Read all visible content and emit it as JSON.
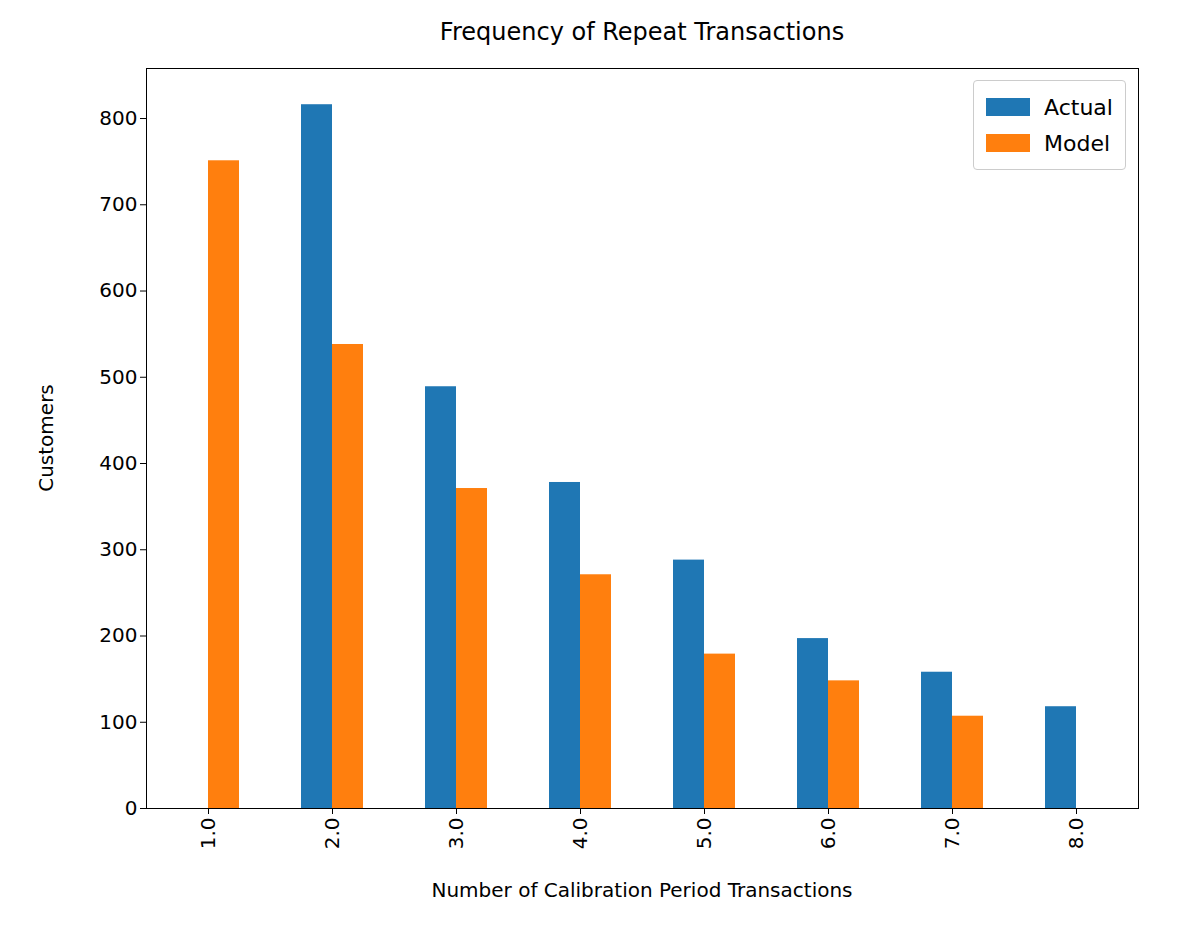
{
  "chart_data": {
    "type": "bar",
    "title": "Frequency of Repeat Transactions",
    "x_label": "Number of Calibration Period Transactions",
    "y_label": "Customers",
    "categories": [
      "1.0",
      "2.0",
      "3.0",
      "4.0",
      "5.0",
      "6.0",
      "7.0",
      "8.0"
    ],
    "series": [
      {
        "name": "Actual",
        "color": "#1f77b4",
        "values": [
          0,
          816,
          489,
          378,
          288,
          197,
          158,
          118
        ]
      },
      {
        "name": "Model",
        "color": "#ff7f0e",
        "values": [
          751,
          538,
          371,
          271,
          179,
          148,
          107,
          0
        ]
      }
    ],
    "ylim": [
      0,
      858
    ],
    "yticks": [
      0,
      100,
      200,
      300,
      400,
      500,
      600,
      700,
      800
    ],
    "grid": false,
    "legend": "upper right"
  }
}
